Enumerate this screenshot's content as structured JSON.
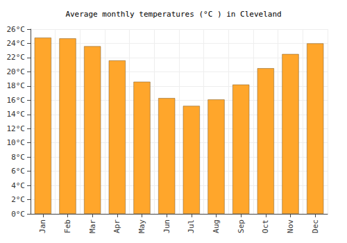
{
  "chart_data": {
    "type": "bar",
    "title": "Average monthly temperatures (°C ) in Cleveland",
    "categories": [
      "Jan",
      "Feb",
      "Mar",
      "Apr",
      "May",
      "Jun",
      "Jul",
      "Aug",
      "Sep",
      "Oct",
      "Nov",
      "Dec"
    ],
    "values": [
      24.8,
      24.7,
      23.6,
      21.6,
      18.6,
      16.3,
      15.2,
      16.1,
      18.2,
      20.5,
      22.5,
      24.0
    ],
    "color": "#ffa62b",
    "ylim": [
      0,
      26
    ],
    "yticks": [
      {
        "value": 0,
        "label": "0°C"
      },
      {
        "value": 2,
        "label": "2°C"
      },
      {
        "value": 4,
        "label": "4°C"
      },
      {
        "value": 6,
        "label": "6°C"
      },
      {
        "value": 8,
        "label": "8°C"
      },
      {
        "value": 10,
        "label": "10°C"
      },
      {
        "value": 12,
        "label": "12°C"
      },
      {
        "value": 14,
        "label": "14°C"
      },
      {
        "value": 16,
        "label": "16°C"
      },
      {
        "value": 18,
        "label": "18°C"
      },
      {
        "value": 20,
        "label": "20°C"
      },
      {
        "value": 22,
        "label": "22°C"
      },
      {
        "value": 24,
        "label": "24°C"
      },
      {
        "value": 26,
        "label": "26°C"
      }
    ],
    "grid": true
  }
}
